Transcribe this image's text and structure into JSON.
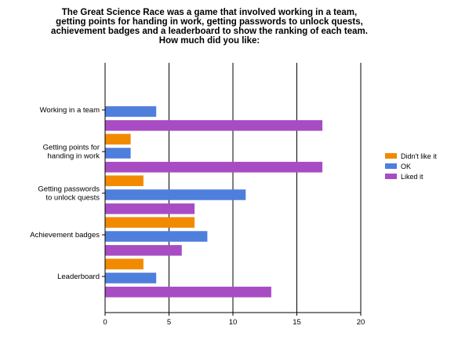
{
  "chart_data": {
    "type": "bar",
    "orientation": "horizontal",
    "title": "The Great Science Race was a game that involved working in a team, getting points for handing in work, getting passwords to unlock quests, achievement badges and a leaderboard to show the ranking of each team. How much did you like:",
    "categories": [
      "Working in a team",
      "Getting points for handing in work",
      "Getting passwords to unlock quests",
      "Achievement badges",
      "Leaderboard"
    ],
    "category_lines": [
      [
        "Working in a team"
      ],
      [
        "Getting points for",
        "handing in work"
      ],
      [
        "Getting passwords",
        "to unlock quests"
      ],
      [
        "Achievement badges"
      ],
      [
        "Leaderboard"
      ]
    ],
    "series": [
      {
        "name": "Didn't like it",
        "color": "#f28a00",
        "values": [
          0,
          2,
          3,
          7,
          3
        ]
      },
      {
        "name": "OK",
        "color": "#4f7fdc",
        "values": [
          4,
          2,
          11,
          8,
          4
        ]
      },
      {
        "name": "Liked it",
        "color": "#a84cc4",
        "values": [
          17,
          17,
          7,
          6,
          13
        ]
      }
    ],
    "xlim": [
      0,
      20
    ],
    "xticks": [
      0,
      5,
      10,
      15,
      20
    ],
    "grid": true,
    "legend": "right",
    "xlabel": "",
    "ylabel": ""
  }
}
